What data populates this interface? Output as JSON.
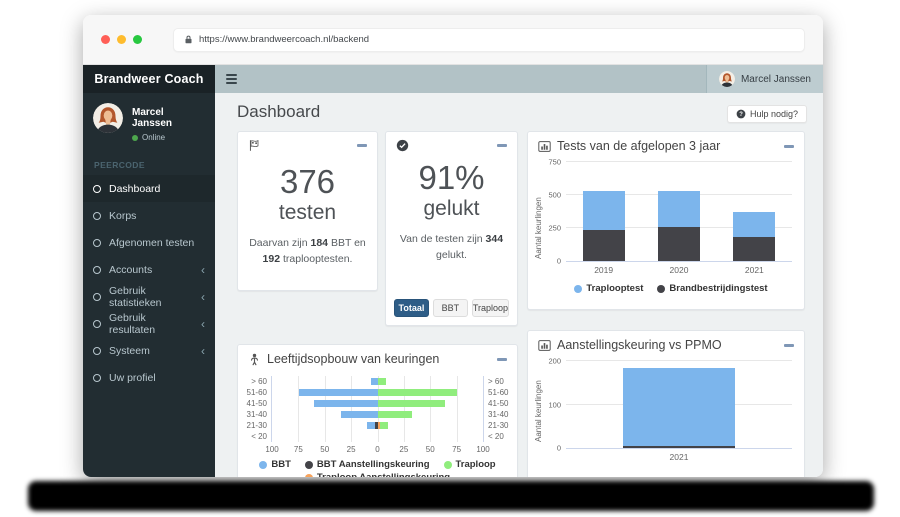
{
  "browser": {
    "url": "https://www.brandweercoach.nl/backend"
  },
  "sidebar": {
    "brand": "Brandweer Coach",
    "user": {
      "name": "Marcel Janssen",
      "status": "Online"
    },
    "section_label": "PEERCODE",
    "items": [
      {
        "label": "Dashboard",
        "active": true,
        "submenu": false
      },
      {
        "label": "Korps",
        "active": false,
        "submenu": false
      },
      {
        "label": "Afgenomen testen",
        "active": false,
        "submenu": false
      },
      {
        "label": "Accounts",
        "active": false,
        "submenu": true
      },
      {
        "label": "Gebruik statistieken",
        "active": false,
        "submenu": true
      },
      {
        "label": "Gebruik resultaten",
        "active": false,
        "submenu": true
      },
      {
        "label": "Systeem",
        "active": false,
        "submenu": true
      },
      {
        "label": "Uw profiel",
        "active": false,
        "submenu": false
      }
    ]
  },
  "topbar": {
    "user_name": "Marcel Janssen"
  },
  "content": {
    "title": "Dashboard",
    "help_label": "Hulp nodig?"
  },
  "cards": {
    "tests": {
      "value": "376",
      "unit": "testen",
      "desc": {
        "pre": "Daarvan zijn ",
        "n1": "184",
        "mid": " BBT en ",
        "n2": "192",
        "post": " traplooptesten."
      }
    },
    "success": {
      "value": "91%",
      "unit": "gelukt",
      "desc": {
        "pre": "Van de testen zijn ",
        "n1": "344",
        "post": " gelukt."
      },
      "buttons": [
        {
          "label": "Totaal",
          "active": true
        },
        {
          "label": "BBT",
          "active": false
        },
        {
          "label": "Traploop",
          "active": false
        }
      ]
    }
  },
  "colors": {
    "chart_blue": "#7cb5ec",
    "chart_dark": "#434348",
    "chart_green": "#90ed7d",
    "chart_orange": "#f7a35c",
    "button_active": "#2e5d87",
    "navbar": "#b2c2c6",
    "sidebar": "#222d32",
    "online_dot": "#4da64d"
  },
  "chart_data": [
    {
      "type": "bar",
      "stacked": true,
      "title": "Tests van de afgelopen 3 jaar",
      "categories": [
        "2019",
        "2020",
        "2021"
      ],
      "series": [
        {
          "name": "Brandbestrijdingstest",
          "color": "#434348",
          "values": [
            235,
            255,
            185
          ]
        },
        {
          "name": "Traplooptest",
          "color": "#7cb5ec",
          "values": [
            295,
            275,
            190
          ]
        }
      ],
      "ylabel": "Aantal keurlingen",
      "ylim": [
        0,
        750
      ],
      "yticks": [
        0,
        250,
        500,
        750
      ],
      "grid": true,
      "legend_position": "bottom",
      "legend": [
        {
          "label": "Traplooptest",
          "color": "#7cb5ec"
        },
        {
          "label": "Brandbestrijdingstest",
          "color": "#434348"
        }
      ]
    },
    {
      "type": "bar",
      "orientation": "horizontal-diverging",
      "title": "Leeftijdsopbouw van keuringen",
      "categories": [
        "> 60",
        "51-60",
        "41-50",
        "31-40",
        "21-30",
        "< 20"
      ],
      "sides": {
        "left": [
          {
            "name": "BBT",
            "color": "#7cb5ec",
            "values": [
              6,
              74,
              60,
              35,
              8,
              0
            ]
          },
          {
            "name": "BBT Aanstellingskeuring",
            "color": "#434348",
            "values": [
              0,
              0,
              0,
              0,
              2,
              0
            ]
          }
        ],
        "right": [
          {
            "name": "Traploop Aanstellingskeuring",
            "color": "#f7a35c",
            "values": [
              0,
              0,
              0,
              0,
              2,
              0
            ]
          },
          {
            "name": "Traploop",
            "color": "#90ed7d",
            "values": [
              8,
              75,
              64,
              33,
              8,
              0
            ]
          }
        ]
      },
      "xlim_each_side": [
        0,
        100
      ],
      "xticks": [
        "100",
        "75",
        "50",
        "25",
        "0",
        "25",
        "50",
        "75",
        "100"
      ],
      "grid": true,
      "legend_position": "bottom",
      "legend": [
        {
          "label": "BBT",
          "color": "#7cb5ec"
        },
        {
          "label": "BBT Aanstellingskeuring",
          "color": "#434348"
        },
        {
          "label": "Traploop",
          "color": "#90ed7d"
        },
        {
          "label": "Traploop Aanstellingskeuring",
          "color": "#f7a35c"
        }
      ]
    },
    {
      "type": "bar",
      "stacked": true,
      "title": "Aanstellingskeuring vs PPMO",
      "categories": [
        "2021"
      ],
      "series": [
        {
          "color": "#434348",
          "values": [
            4
          ]
        },
        {
          "color": "#7cb5ec",
          "values": [
            179
          ]
        }
      ],
      "ylabel": "Aantal keurlingen",
      "ylim": [
        0,
        200
      ],
      "yticks": [
        0,
        100,
        200
      ],
      "grid": true
    }
  ]
}
